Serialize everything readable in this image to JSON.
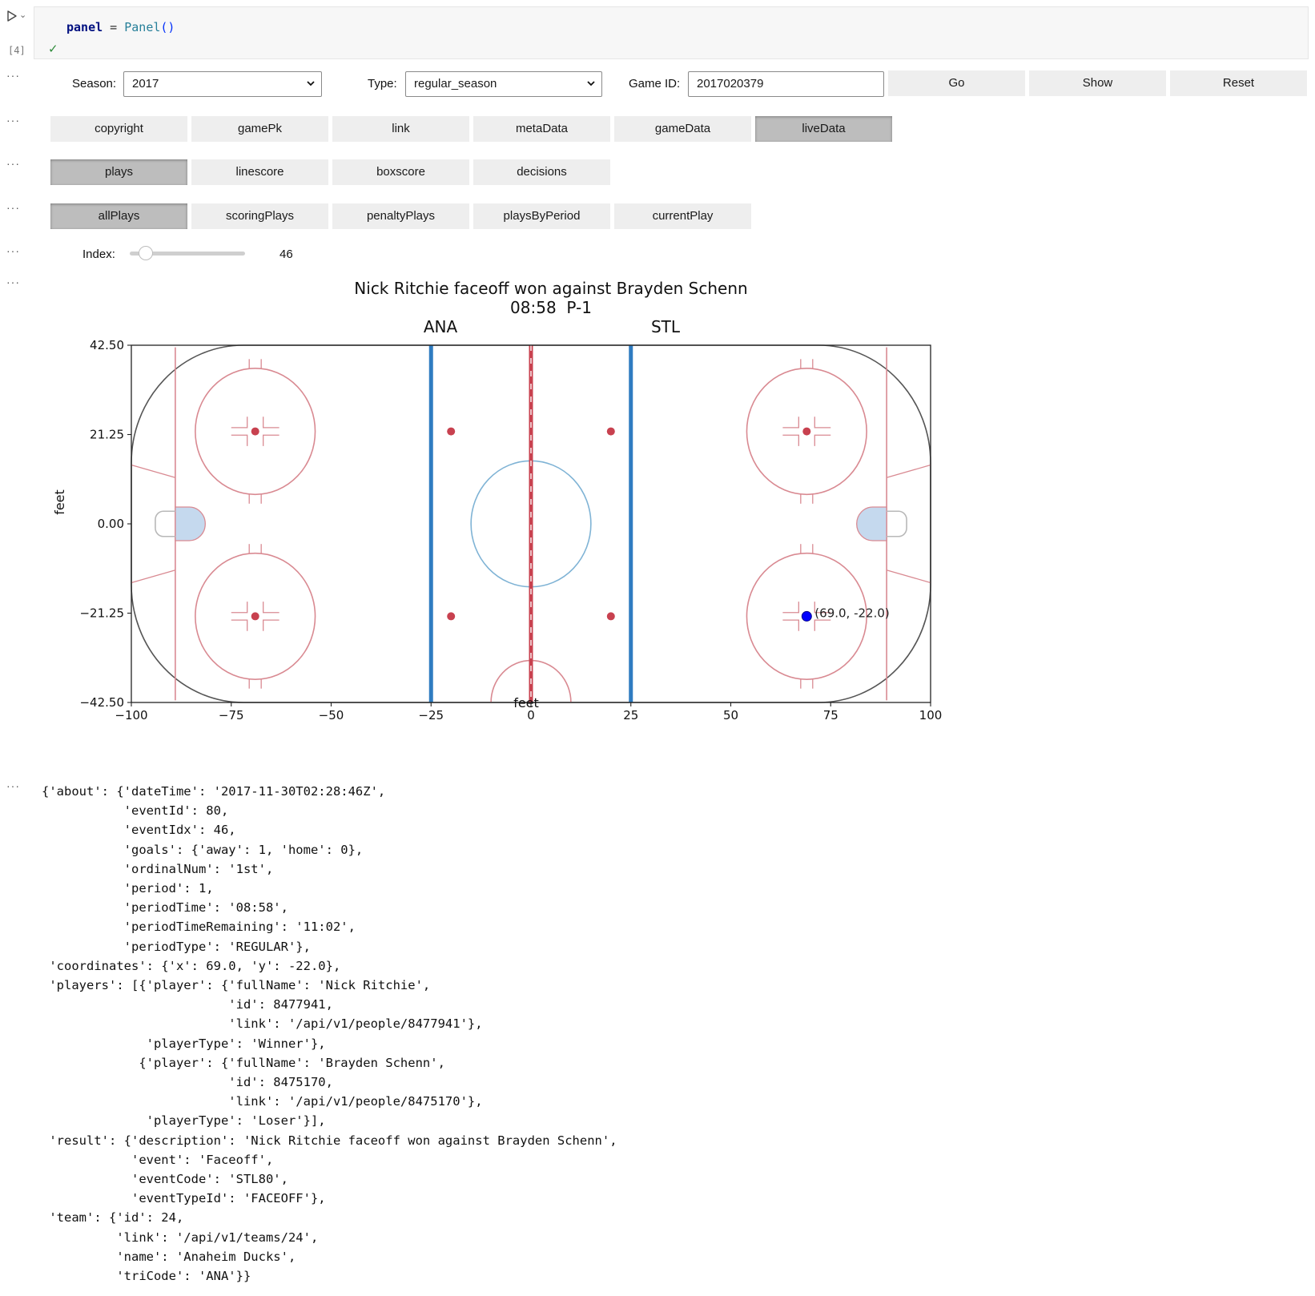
{
  "cell": {
    "code_var": "panel",
    "code_op": " = ",
    "code_class": "Panel",
    "code_parens": "()",
    "exec_count": "[4]",
    "ellipsis": "···"
  },
  "controls": {
    "season_label": "Season:",
    "season_value": "2017",
    "type_label": "Type:",
    "type_value": "regular_season",
    "game_label": "Game ID:",
    "game_value": "2017020379",
    "go_label": "Go",
    "show_label": "Show",
    "reset_label": "Reset"
  },
  "row1": [
    "copyright",
    "gamePk",
    "link",
    "metaData",
    "gameData",
    "liveData"
  ],
  "row2": [
    "plays",
    "linescore",
    "boxscore",
    "decisions"
  ],
  "row3": [
    "allPlays",
    "scoringPlays",
    "penaltyPlays",
    "playsByPeriod",
    "currentPlay"
  ],
  "slider": {
    "label": "Index:",
    "value": "46",
    "min": 0,
    "max": 700,
    "fraction": 0.066
  },
  "chart_data": {
    "type": "scatter",
    "title": "Nick Ritchie faceoff won against Brayden Schenn",
    "subtitle": "08:58  P-1",
    "team_left": "ANA",
    "team_right": "STL",
    "xlabel": "feet",
    "ylabel": "feet",
    "xlim": [
      -100,
      100
    ],
    "ylim": [
      -42.5,
      42.5
    ],
    "xticks": [
      "−100",
      "−75",
      "−50",
      "−25",
      "0",
      "25",
      "50",
      "75",
      "100"
    ],
    "yticks": [
      "42.50",
      "21.25",
      "0.00",
      "−21.25",
      "−42.50"
    ],
    "points": [
      {
        "x": 69.0,
        "y": -22.0,
        "label": "(69.0, -22.0)",
        "color": "#0000ff"
      }
    ]
  },
  "output_text": "{'about': {'dateTime': '2017-11-30T02:28:46Z',\n           'eventId': 80,\n           'eventIdx': 46,\n           'goals': {'away': 1, 'home': 0},\n           'ordinalNum': '1st',\n           'period': 1,\n           'periodTime': '08:58',\n           'periodTimeRemaining': '11:02',\n           'periodType': 'REGULAR'},\n 'coordinates': {'x': 69.0, 'y': -22.0},\n 'players': [{'player': {'fullName': 'Nick Ritchie',\n                         'id': 8477941,\n                         'link': '/api/v1/people/8477941'},\n              'playerType': 'Winner'},\n             {'player': {'fullName': 'Brayden Schenn',\n                         'id': 8475170,\n                         'link': '/api/v1/people/8475170'},\n              'playerType': 'Loser'}],\n 'result': {'description': 'Nick Ritchie faceoff won against Brayden Schenn',\n            'event': 'Faceoff',\n            'eventCode': 'STL80',\n            'eventTypeId': 'FACEOFF'},\n 'team': {'id': 24,\n          'link': '/api/v1/teams/24',\n          'name': 'Anaheim Ducks',\n          'triCode': 'ANA'}}"
}
